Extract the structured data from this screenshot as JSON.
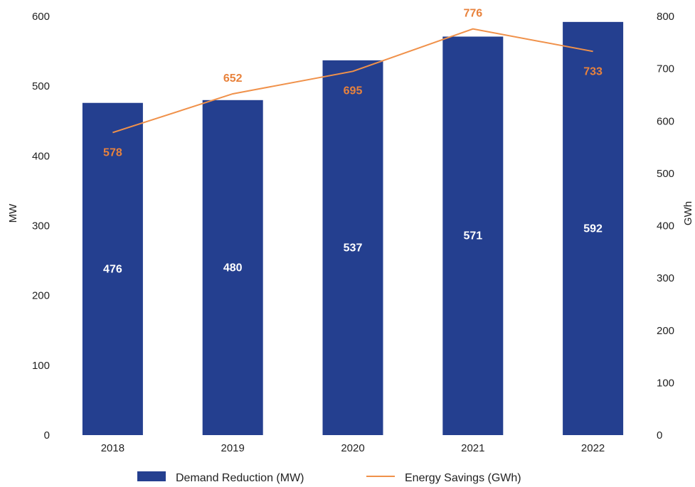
{
  "chart_data": {
    "type": "bar",
    "categories": [
      "2018",
      "2019",
      "2020",
      "2021",
      "2022"
    ],
    "series": [
      {
        "name": "Demand Reduction (MW)",
        "type": "bar",
        "axis": "left",
        "color": "#243f8f",
        "values": [
          476,
          480,
          537,
          571,
          592
        ]
      },
      {
        "name": "Energy Savings (GWh)",
        "type": "line",
        "axis": "right",
        "color": "#f0914a",
        "values": [
          578,
          652,
          695,
          776,
          733
        ]
      }
    ],
    "ylabel": "MW",
    "ylabel_right": "GWh",
    "ylim": [
      0,
      600
    ],
    "ylim_right": [
      0,
      800
    ],
    "yticks": [
      "0",
      "100",
      "200",
      "300",
      "400",
      "500",
      "600"
    ],
    "yticks_right": [
      "0",
      "100",
      "200",
      "300",
      "400",
      "500",
      "600",
      "700",
      "800"
    ],
    "grid": false,
    "legend": "bottom-center",
    "label_colors": {
      "bar": "#ffffff",
      "line": "#e8823c"
    }
  }
}
